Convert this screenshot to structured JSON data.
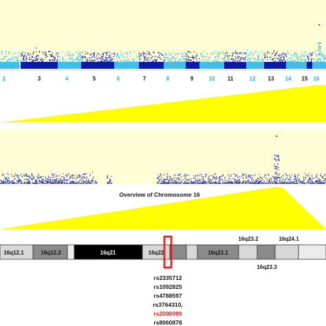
{
  "manhattan": {
    "chromosomes": [
      "2",
      "3",
      "4",
      "5",
      "6",
      "7",
      "8",
      "9",
      "10",
      "11",
      "12",
      "13",
      "14",
      "15",
      "16"
    ],
    "chrom_colors": [
      "#3fbfe8",
      "#0a1aa8",
      "#3fbfe8",
      "#0a1aa8",
      "#3fbfe8",
      "#0a1aa8",
      "#3fbfe8",
      "#0a1aa8",
      "#3fbfe8",
      "#0a1aa8",
      "#3fbfe8",
      "#0a1aa8",
      "#3fbfe8",
      "#0a1aa8",
      "#3fbfe8"
    ],
    "label_colors": [
      "#2aaee0",
      "#111111",
      "#2aaee0",
      "#111111",
      "#2aaee0",
      "#111111",
      "#2aaee0",
      "#111111",
      "#2aaee0",
      "#111111",
      "#2aaee0",
      "#111111",
      "#2aaee0",
      "#111111",
      "#2aaee0"
    ],
    "panel_bg": "#fefed6",
    "highlight_color": "#e8201a"
  },
  "chr16_plot": {
    "title": "Overview of Chromosome 16",
    "point_color": "#1520b8",
    "panel_bg": "#fefed6",
    "highlight_color": "#e8201a"
  },
  "zoom_color": "#ffff00",
  "ideogram": {
    "bands": [
      {
        "label": "16q12.1",
        "fill": "#d8d8d8",
        "text_color": "#111111"
      },
      {
        "label": "16q12.2",
        "fill": "#8a8a8a",
        "text_color": "#111111"
      },
      {
        "label": "16q21",
        "fill": "#000000",
        "text_color": "#ffffff"
      },
      {
        "label": "16q22",
        "fill": "#d8d8d8",
        "text_color": "#111111"
      },
      {
        "label": "16q23.1",
        "fill": "#8a8a8a",
        "text_color": "#111111"
      }
    ],
    "above_labels": [
      "16q23.2",
      "16q24.1"
    ],
    "below_labels": [
      "16q23.3"
    ],
    "marker_color": "#e8201a"
  },
  "snps": [
    {
      "id": "rs2335712",
      "color": "#111111"
    },
    {
      "id": "rs1092825",
      "color": "#111111"
    },
    {
      "id": "rs4788597",
      "color": "#111111"
    },
    {
      "id": "rs3764310,",
      "color": "#111111"
    },
    {
      "id": "rs2000999",
      "color": "#e8201a"
    },
    {
      "id": "rs8060878",
      "color": "#111111"
    }
  ]
}
